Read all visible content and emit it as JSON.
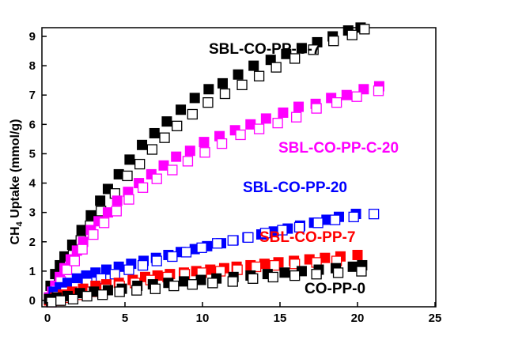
{
  "chart_data": {
    "type": "scatter",
    "title": "",
    "xlabel": "",
    "ylabel": "CH4 Uptake (mmol/g)",
    "ylabel_parts": {
      "pre": "CH",
      "sub": "4",
      "post": " Uptake (mmol/g)"
    },
    "xlim": [
      0,
      25
    ],
    "ylim": [
      0,
      9
    ],
    "xticks": [
      0,
      5,
      10,
      15,
      20,
      25
    ],
    "yticks": [
      0,
      1,
      2,
      3,
      4,
      5,
      6,
      7,
      8,
      9
    ],
    "grid": false,
    "legend": "none",
    "series": [
      {
        "name": "SBL-CO-PP-C-7",
        "color": "#000000",
        "adsorption": [
          [
            0.1,
            0.1
          ],
          [
            0.2,
            0.5
          ],
          [
            0.5,
            0.9
          ],
          [
            0.8,
            1.2
          ],
          [
            1.1,
            1.5
          ],
          [
            1.6,
            1.9
          ],
          [
            2.2,
            2.4
          ],
          [
            2.8,
            2.9
          ],
          [
            3.4,
            3.4
          ],
          [
            3.9,
            3.8
          ],
          [
            4.6,
            4.3
          ],
          [
            5.3,
            4.8
          ],
          [
            6.1,
            5.3
          ],
          [
            6.9,
            5.7
          ],
          [
            7.7,
            6.1
          ],
          [
            8.6,
            6.5
          ],
          [
            9.5,
            6.9
          ],
          [
            10.4,
            7.2
          ],
          [
            11.3,
            7.4
          ],
          [
            12.3,
            7.7
          ],
          [
            13.3,
            8.0
          ],
          [
            14.4,
            8.2
          ],
          [
            15.4,
            8.4
          ],
          [
            16.4,
            8.6
          ],
          [
            17.4,
            8.8
          ],
          [
            18.4,
            9.0
          ],
          [
            19.4,
            9.2
          ],
          [
            20.2,
            9.3
          ]
        ],
        "desorption": [
          [
            0.1,
            0.05
          ],
          [
            0.3,
            0.3
          ],
          [
            0.6,
            0.7
          ],
          [
            1.0,
            1.1
          ],
          [
            1.5,
            1.6
          ],
          [
            2.0,
            2.1
          ],
          [
            2.6,
            2.6
          ],
          [
            3.3,
            3.1
          ],
          [
            4.2,
            3.7
          ],
          [
            5.0,
            4.3
          ],
          [
            5.8,
            4.7
          ],
          [
            6.6,
            5.2
          ],
          [
            7.4,
            5.6
          ],
          [
            8.2,
            6.0
          ],
          [
            9.2,
            6.4
          ],
          [
            10.2,
            6.8
          ],
          [
            11.3,
            7.1
          ],
          [
            12.4,
            7.4
          ],
          [
            13.5,
            7.7
          ],
          [
            14.6,
            8.0
          ],
          [
            15.8,
            8.3
          ],
          [
            17.0,
            8.6
          ],
          [
            18.3,
            8.9
          ],
          [
            19.5,
            9.1
          ],
          [
            20.3,
            9.3
          ]
        ],
        "label": "SBL-CO-PP-C-7"
      },
      {
        "name": "SBL-CO-PP-C-20",
        "color": "#ff00ff",
        "adsorption": [
          [
            0.1,
            0.1
          ],
          [
            0.3,
            0.3
          ],
          [
            0.5,
            0.5
          ],
          [
            0.8,
            0.8
          ],
          [
            1.1,
            1.1
          ],
          [
            1.5,
            1.4
          ],
          [
            1.9,
            1.7
          ],
          [
            2.3,
            2.0
          ],
          [
            2.8,
            2.4
          ],
          [
            3.3,
            2.7
          ],
          [
            3.9,
            3.0
          ],
          [
            4.5,
            3.4
          ],
          [
            5.2,
            3.7
          ],
          [
            5.9,
            4.0
          ],
          [
            6.7,
            4.3
          ],
          [
            7.5,
            4.6
          ],
          [
            8.3,
            4.9
          ],
          [
            9.2,
            5.1
          ],
          [
            10.1,
            5.4
          ],
          [
            11.1,
            5.6
          ],
          [
            12.1,
            5.8
          ],
          [
            13.1,
            6.0
          ],
          [
            14.1,
            6.2
          ],
          [
            15.2,
            6.4
          ],
          [
            16.2,
            6.6
          ],
          [
            17.3,
            6.7
          ],
          [
            18.3,
            6.9
          ],
          [
            19.3,
            7.0
          ],
          [
            20.4,
            7.2
          ],
          [
            21.4,
            7.3
          ]
        ],
        "desorption": [
          [
            0.1,
            0.05
          ],
          [
            0.4,
            0.4
          ],
          [
            0.7,
            0.7
          ],
          [
            1.1,
            1.1
          ],
          [
            1.6,
            1.4
          ],
          [
            2.1,
            1.8
          ],
          [
            2.8,
            2.3
          ],
          [
            3.5,
            2.7
          ],
          [
            4.3,
            3.1
          ],
          [
            5.1,
            3.5
          ],
          [
            6.0,
            3.9
          ],
          [
            6.9,
            4.2
          ],
          [
            7.9,
            4.5
          ],
          [
            8.9,
            4.8
          ],
          [
            10.0,
            5.1
          ],
          [
            11.1,
            5.4
          ],
          [
            12.3,
            5.7
          ],
          [
            13.5,
            5.9
          ],
          [
            14.7,
            6.1
          ],
          [
            15.9,
            6.3
          ],
          [
            17.2,
            6.6
          ],
          [
            18.5,
            6.8
          ],
          [
            19.8,
            7.0
          ],
          [
            21.2,
            7.2
          ]
        ],
        "label": "SBL-CO-PP-C-20"
      },
      {
        "name": "SBL-CO-PP-20",
        "color": "#0000ff",
        "adsorption": [
          [
            0.1,
            0.05
          ],
          [
            0.4,
            0.3
          ],
          [
            0.8,
            0.45
          ],
          [
            1.3,
            0.6
          ],
          [
            1.9,
            0.75
          ],
          [
            2.5,
            0.85
          ],
          [
            3.1,
            0.95
          ],
          [
            3.8,
            1.05
          ],
          [
            4.6,
            1.15
          ],
          [
            5.4,
            1.25
          ],
          [
            6.2,
            1.35
          ],
          [
            7.0,
            1.45
          ],
          [
            7.8,
            1.55
          ],
          [
            8.6,
            1.65
          ],
          [
            9.5,
            1.75
          ],
          [
            10.3,
            1.85
          ],
          [
            11.2,
            1.95
          ],
          [
            12.0,
            2.05
          ],
          [
            12.9,
            2.15
          ],
          [
            13.8,
            2.25
          ],
          [
            14.6,
            2.35
          ],
          [
            15.5,
            2.45
          ],
          [
            16.3,
            2.55
          ],
          [
            17.2,
            2.65
          ],
          [
            18.0,
            2.75
          ],
          [
            18.8,
            2.85
          ],
          [
            19.9,
            2.95
          ]
        ],
        "desorption": [
          [
            0.1,
            0.0
          ],
          [
            0.5,
            0.2
          ],
          [
            1.0,
            0.35
          ],
          [
            1.7,
            0.5
          ],
          [
            2.4,
            0.65
          ],
          [
            3.3,
            0.8
          ],
          [
            4.2,
            0.95
          ],
          [
            5.1,
            1.1
          ],
          [
            6.0,
            1.25
          ],
          [
            6.9,
            1.4
          ],
          [
            7.9,
            1.55
          ],
          [
            8.8,
            1.7
          ],
          [
            9.8,
            1.85
          ],
          [
            10.8,
            2.0
          ],
          [
            11.8,
            2.1
          ],
          [
            12.8,
            2.2
          ],
          [
            13.9,
            2.35
          ],
          [
            15.0,
            2.45
          ],
          [
            16.1,
            2.55
          ],
          [
            17.3,
            2.7
          ],
          [
            18.4,
            2.8
          ],
          [
            19.6,
            2.9
          ],
          [
            20.9,
            3.0
          ]
        ],
        "label": "SBL-CO-PP-20"
      },
      {
        "name": "SBL-CO-PP-7",
        "color": "#ff0000",
        "adsorption": [
          [
            0.1,
            0.0
          ],
          [
            0.5,
            0.1
          ],
          [
            1.0,
            0.2
          ],
          [
            1.6,
            0.3
          ],
          [
            2.3,
            0.4
          ],
          [
            3.1,
            0.5
          ],
          [
            3.8,
            0.55
          ],
          [
            4.6,
            0.6
          ],
          [
            5.5,
            0.7
          ],
          [
            6.3,
            0.8
          ],
          [
            7.1,
            0.85
          ],
          [
            7.9,
            0.9
          ],
          [
            8.8,
            0.95
          ],
          [
            9.6,
            1.0
          ],
          [
            10.5,
            1.05
          ],
          [
            11.4,
            1.1
          ],
          [
            12.2,
            1.15
          ],
          [
            13.1,
            1.2
          ],
          [
            14.0,
            1.25
          ],
          [
            14.9,
            1.3
          ],
          [
            15.9,
            1.35
          ],
          [
            16.9,
            1.4
          ],
          [
            17.9,
            1.45
          ],
          [
            18.9,
            1.5
          ],
          [
            20.0,
            1.55
          ]
        ],
        "desorption": [
          [
            0.1,
            0.0
          ],
          [
            0.6,
            0.05
          ],
          [
            1.2,
            0.15
          ],
          [
            1.9,
            0.25
          ],
          [
            2.7,
            0.35
          ],
          [
            3.6,
            0.45
          ],
          [
            4.5,
            0.55
          ],
          [
            5.5,
            0.65
          ],
          [
            6.5,
            0.75
          ],
          [
            7.6,
            0.85
          ],
          [
            8.7,
            0.95
          ],
          [
            9.8,
            1.0
          ],
          [
            11.0,
            1.05
          ],
          [
            12.1,
            1.1
          ],
          [
            13.3,
            1.2
          ],
          [
            14.5,
            1.25
          ],
          [
            15.8,
            1.3
          ],
          [
            17.2,
            1.35
          ],
          [
            18.5,
            1.4
          ]
        ],
        "label": "SBL-CO-PP-7"
      },
      {
        "name": "CO-PP-0",
        "color": "#000000",
        "adsorption": [
          [
            0.1,
            0.05
          ],
          [
            0.6,
            0.1
          ],
          [
            1.3,
            0.15
          ],
          [
            2.1,
            0.25
          ],
          [
            3.0,
            0.3
          ],
          [
            3.9,
            0.35
          ],
          [
            4.8,
            0.4
          ],
          [
            5.8,
            0.5
          ],
          [
            6.8,
            0.55
          ],
          [
            7.8,
            0.6
          ],
          [
            8.8,
            0.65
          ],
          [
            9.9,
            0.7
          ],
          [
            10.9,
            0.75
          ],
          [
            12.0,
            0.8
          ],
          [
            13.1,
            0.85
          ],
          [
            14.2,
            0.9
          ],
          [
            15.3,
            0.95
          ],
          [
            16.4,
            1.0
          ],
          [
            17.5,
            1.05
          ],
          [
            18.6,
            1.1
          ],
          [
            19.7,
            1.15
          ],
          [
            20.3,
            1.2
          ]
        ],
        "desorption": [
          [
            0.1,
            0.0
          ],
          [
            0.7,
            0.05
          ],
          [
            1.5,
            0.1
          ],
          [
            2.4,
            0.2
          ],
          [
            3.4,
            0.25
          ],
          [
            4.5,
            0.35
          ],
          [
            5.6,
            0.4
          ],
          [
            6.8,
            0.45
          ],
          [
            8.0,
            0.55
          ],
          [
            9.2,
            0.6
          ],
          [
            10.5,
            0.65
          ],
          [
            11.8,
            0.7
          ],
          [
            13.1,
            0.8
          ],
          [
            14.4,
            0.85
          ],
          [
            15.8,
            0.9
          ],
          [
            17.2,
            0.95
          ],
          [
            18.6,
            1.0
          ],
          [
            20.1,
            1.05
          ]
        ],
        "label": "CO-PP-0"
      }
    ]
  }
}
